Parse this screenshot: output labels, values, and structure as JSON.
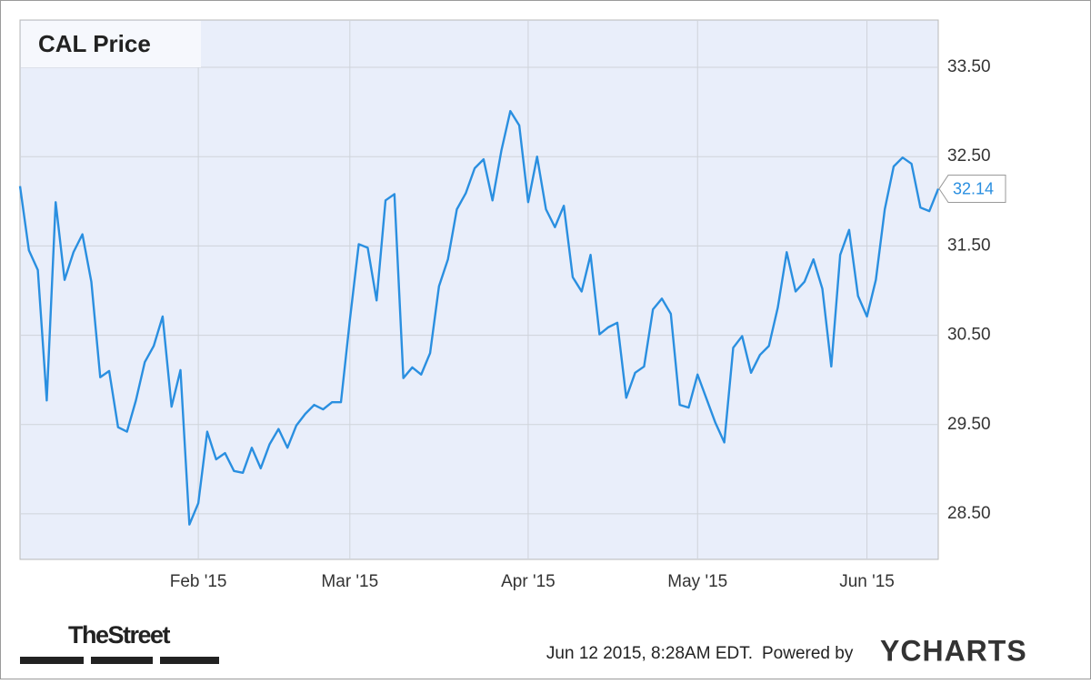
{
  "chart_data": {
    "type": "line",
    "title": "CAL Price",
    "color": "#2a8fe0",
    "grid": true,
    "categories": [
      null,
      null,
      null,
      null,
      null,
      null,
      null,
      null,
      null,
      null,
      null,
      null,
      null,
      null,
      null,
      null,
      null,
      null,
      null,
      null,
      "Feb '15",
      null,
      null,
      null,
      null,
      null,
      null,
      null,
      null,
      null,
      null,
      null,
      null,
      null,
      null,
      null,
      null,
      "Mar '15",
      null,
      null,
      null,
      null,
      null,
      null,
      null,
      null,
      null,
      null,
      null,
      null,
      null,
      null,
      null,
      null,
      null,
      null,
      null,
      "Apr '15",
      null,
      null,
      null,
      null,
      null,
      null,
      null,
      null,
      null,
      null,
      null,
      null,
      null,
      null,
      null,
      null,
      null,
      null,
      "May '15",
      null,
      null,
      null,
      null,
      null,
      null,
      null,
      null,
      null,
      null,
      null,
      null,
      null,
      null,
      null,
      null,
      null,
      null,
      "Jun '15",
      null,
      null,
      null,
      null,
      null,
      null,
      null,
      null
    ],
    "values": [
      32.17,
      31.45,
      31.23,
      29.77,
      31.99,
      31.12,
      31.43,
      31.63,
      31.1,
      30.03,
      30.1,
      29.47,
      29.42,
      29.77,
      30.2,
      30.38,
      30.71,
      29.7,
      30.11,
      28.38,
      28.62,
      29.42,
      29.11,
      29.18,
      28.98,
      28.96,
      29.24,
      29.01,
      29.28,
      29.45,
      29.24,
      29.49,
      29.62,
      29.72,
      29.67,
      29.75,
      29.75,
      30.67,
      31.52,
      31.48,
      30.89,
      32.01,
      32.08,
      30.02,
      30.14,
      30.06,
      30.3,
      31.05,
      31.35,
      31.91,
      32.09,
      32.37,
      32.47,
      32.01,
      32.57,
      33.01,
      32.85,
      31.99,
      32.5,
      31.91,
      31.71,
      31.95,
      31.15,
      30.99,
      31.4,
      30.51,
      30.59,
      30.64,
      29.8,
      30.08,
      30.15,
      30.79,
      30.91,
      30.74,
      29.72,
      29.69,
      30.06,
      29.79,
      29.52,
      29.3,
      30.36,
      30.49,
      30.08,
      30.28,
      30.38,
      30.81,
      31.43,
      30.99,
      31.1,
      31.35,
      31.02,
      30.15,
      31.4,
      31.68,
      30.94,
      30.71,
      31.12,
      31.91,
      32.39,
      32.49,
      32.42,
      31.93,
      31.89,
      32.14
    ],
    "ylim": [
      27.99,
      34.03
    ],
    "yticks": [
      {
        "value": 28.5,
        "label": "28.50"
      },
      {
        "value": 29.5,
        "label": "29.50"
      },
      {
        "value": 30.5,
        "label": "30.50"
      },
      {
        "value": 31.5,
        "label": "31.50"
      },
      {
        "value": 32.5,
        "label": "32.50"
      },
      {
        "value": 33.5,
        "label": "33.50"
      }
    ],
    "source_logo": "TheStreet",
    "timestamp": "Jun 12 2015, 8:28AM EDT.",
    "credit": "Powered by",
    "brand": "YCHARTS"
  }
}
